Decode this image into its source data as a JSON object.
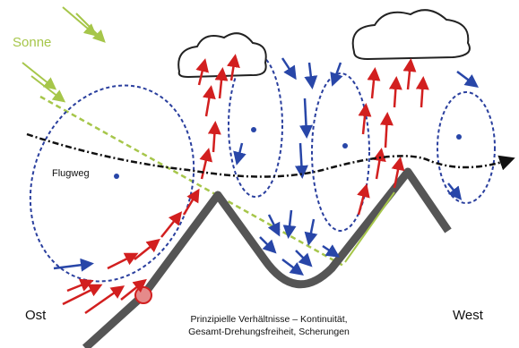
{
  "labels": {
    "sun": "Sonne",
    "flight_path": "Flugweg",
    "east": "Ost",
    "west": "West"
  },
  "caption": {
    "line1": "Prinzipielle Verhältnisse – Kontinuität,",
    "line2": "Gesamt-Drehungsfreiheit, Scherungen"
  }
}
